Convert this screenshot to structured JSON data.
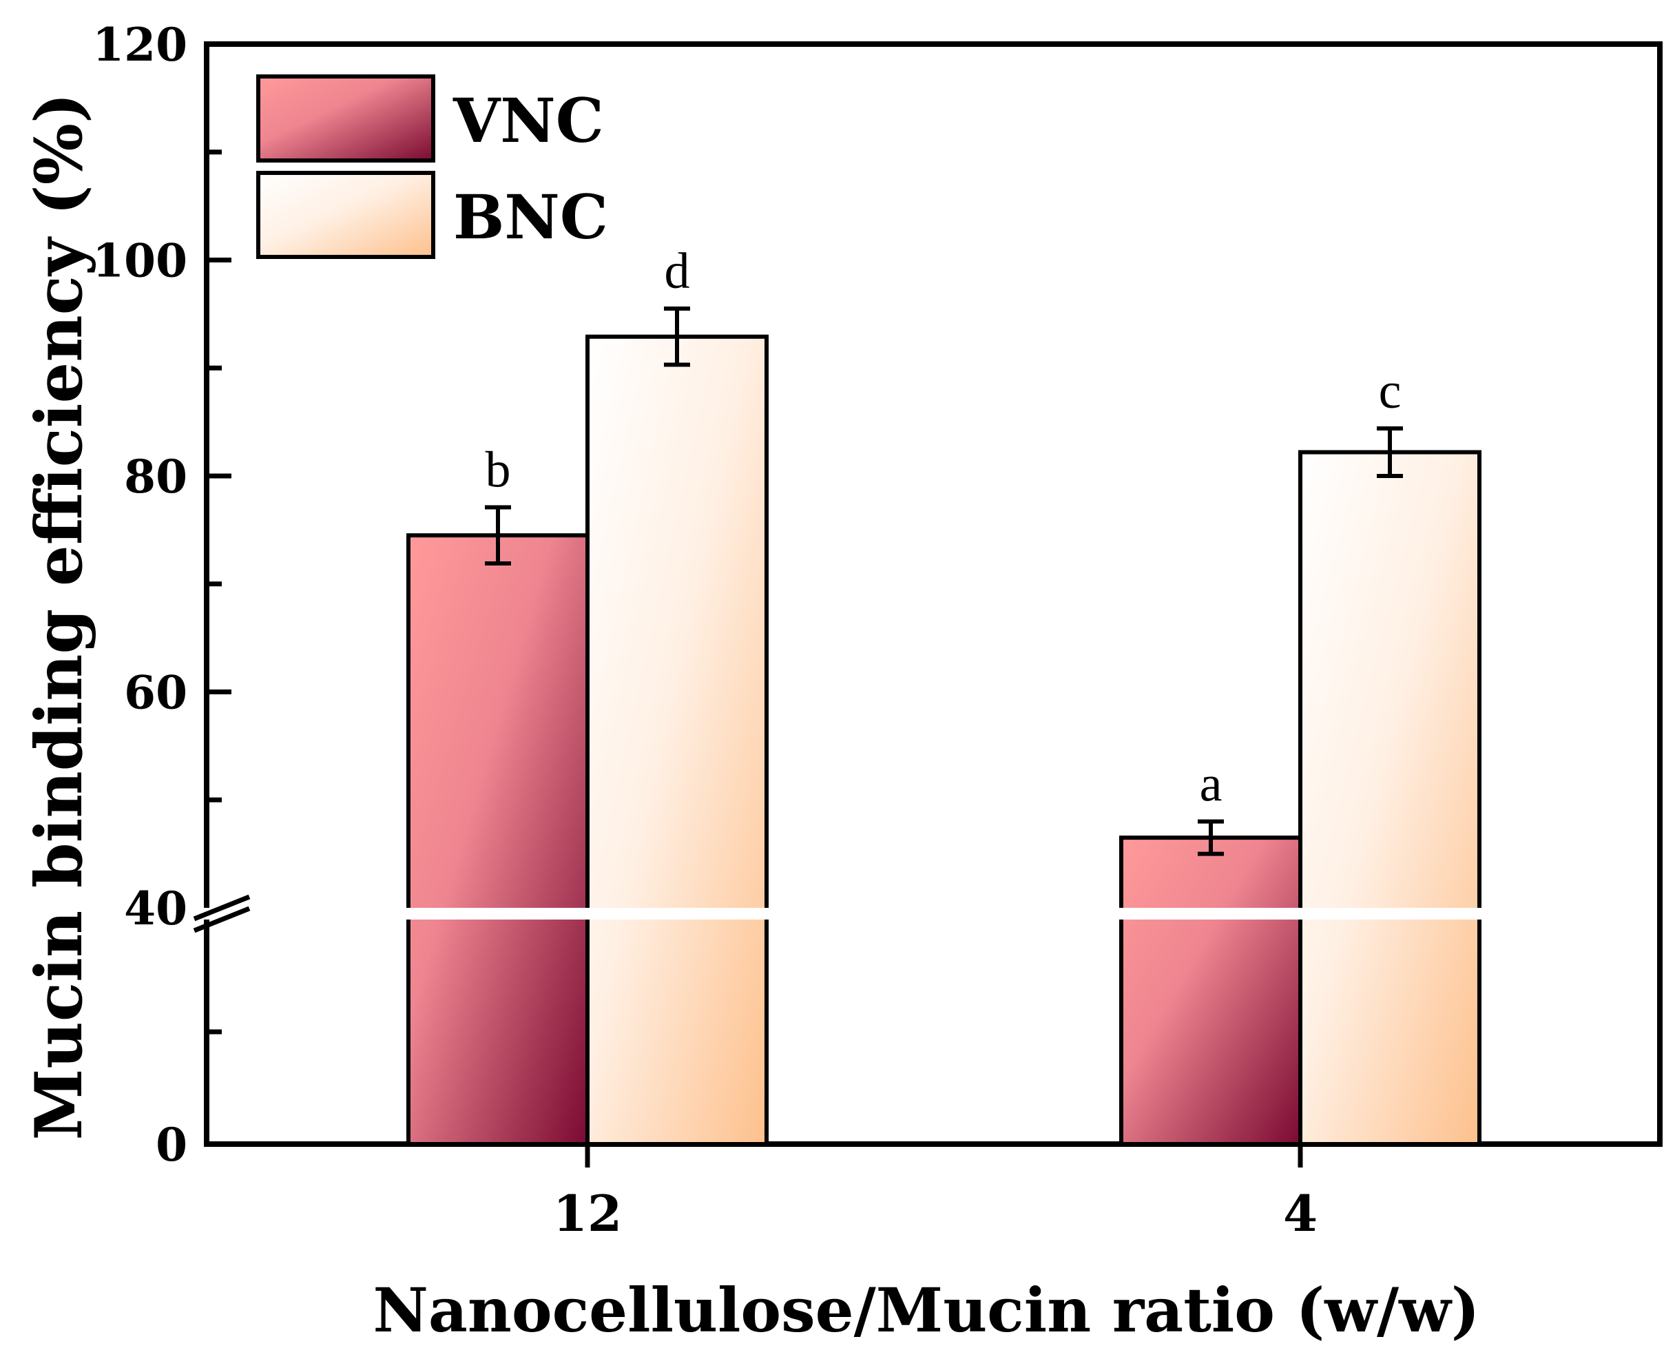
{
  "chart_data": {
    "type": "bar",
    "title": "",
    "xlabel": "Nanocellulose/Mucin ratio (w/w)",
    "ylabel": "Mucin binding efficiency (%)",
    "categories": [
      "12",
      "4"
    ],
    "series": [
      {
        "name": "VNC",
        "values": [
          74.5,
          46.5
        ],
        "errors": [
          2.6,
          1.5
        ],
        "letters": [
          "b",
          "a"
        ],
        "color_light": "#ff9a9a",
        "color_dark": "#7a0a32"
      },
      {
        "name": "BNC",
        "values": [
          92.9,
          82.2
        ],
        "errors": [
          2.6,
          2.2
        ],
        "letters": [
          "d",
          "c"
        ],
        "color_light": "#ffffff",
        "color_dark": "#fdc08c"
      }
    ],
    "yaxis": {
      "broken": true,
      "break_value": 40,
      "lower_segment": [
        0,
        40
      ],
      "upper_segment": [
        40,
        120
      ],
      "tick_labels": [
        "0",
        "40",
        "60",
        "80",
        "100",
        "120"
      ],
      "tick_values": [
        0,
        40,
        60,
        80,
        100,
        120
      ],
      "minor_ticks": [
        20,
        50,
        70,
        90,
        110
      ]
    },
    "legend": {
      "placement": "top-left",
      "entries": [
        "VNC",
        "BNC"
      ]
    },
    "grid": false
  }
}
